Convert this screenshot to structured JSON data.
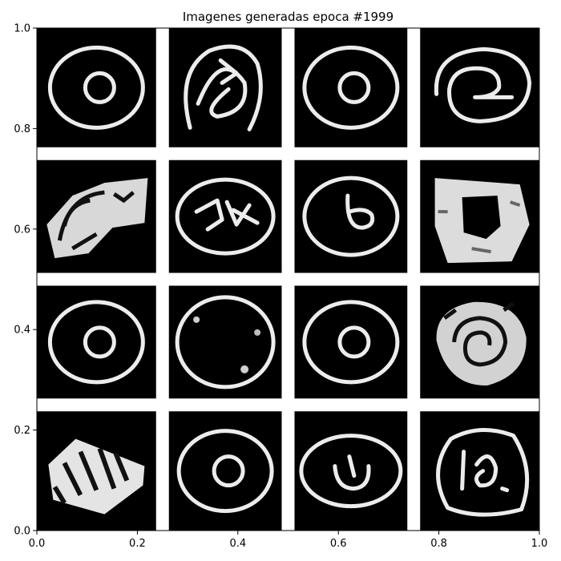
{
  "chart_data": {
    "type": "image_grid",
    "title": "Imagenes generadas epoca #1999",
    "xlabel": "",
    "ylabel": "",
    "xlim": [
      0,
      1
    ],
    "ylim": [
      0,
      1
    ],
    "grid": false,
    "x_ticks": [
      "0.0",
      "0.2",
      "0.4",
      "0.6",
      "0.8",
      "1.0"
    ],
    "y_ticks": [
      "0.0",
      "0.2",
      "0.4",
      "0.6",
      "0.8",
      "1.0"
    ],
    "rows": 4,
    "cols": 4,
    "tiles": [
      {
        "row": 0,
        "col": 0,
        "kind": "ring-dot"
      },
      {
        "row": 0,
        "col": 1,
        "kind": "scribble"
      },
      {
        "row": 0,
        "col": 2,
        "kind": "ring-dot"
      },
      {
        "row": 0,
        "col": 3,
        "kind": "spiral"
      },
      {
        "row": 1,
        "col": 0,
        "kind": "blob"
      },
      {
        "row": 1,
        "col": 1,
        "kind": "ring-scribble"
      },
      {
        "row": 1,
        "col": 2,
        "kind": "ring-loop"
      },
      {
        "row": 1,
        "col": 3,
        "kind": "thick-blob"
      },
      {
        "row": 2,
        "col": 0,
        "kind": "ring-dot"
      },
      {
        "row": 2,
        "col": 1,
        "kind": "ring-empty"
      },
      {
        "row": 2,
        "col": 2,
        "kind": "ring-dot"
      },
      {
        "row": 2,
        "col": 3,
        "kind": "spiral-blob"
      },
      {
        "row": 3,
        "col": 0,
        "kind": "stripes"
      },
      {
        "row": 3,
        "col": 1,
        "kind": "ring-dot"
      },
      {
        "row": 3,
        "col": 2,
        "kind": "ring-u"
      },
      {
        "row": 3,
        "col": 3,
        "kind": "ring-spiral"
      }
    ]
  }
}
